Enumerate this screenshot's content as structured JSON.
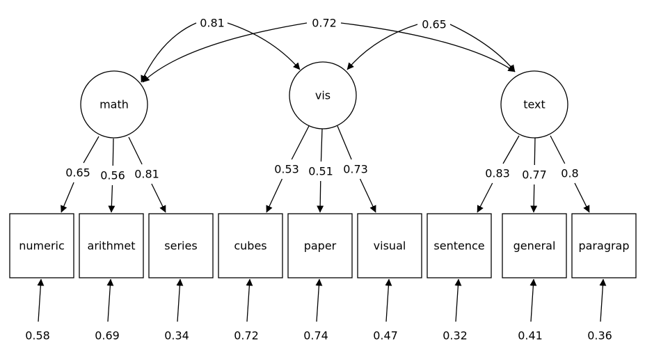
{
  "latent_factors": [
    {
      "id": "math",
      "label": "math"
    },
    {
      "id": "vis",
      "label": "vis"
    },
    {
      "id": "text",
      "label": "text"
    }
  ],
  "factor_correlations": [
    {
      "from": "math",
      "to": "vis",
      "value": "0.81"
    },
    {
      "from": "math",
      "to": "text",
      "value": "0.72"
    },
    {
      "from": "vis",
      "to": "text",
      "value": "0.65"
    }
  ],
  "indicators": [
    {
      "id": "numeric",
      "label": "numeric",
      "factor": "math",
      "loading": "0.65",
      "residual": "0.58"
    },
    {
      "id": "arithmet",
      "label": "arithmet",
      "factor": "math",
      "loading": "0.56",
      "residual": "0.69"
    },
    {
      "id": "series",
      "label": "series",
      "factor": "math",
      "loading": "0.81",
      "residual": "0.34"
    },
    {
      "id": "cubes",
      "label": "cubes",
      "factor": "vis",
      "loading": "0.53",
      "residual": "0.72"
    },
    {
      "id": "paper",
      "label": "paper",
      "factor": "vis",
      "loading": "0.51",
      "residual": "0.74"
    },
    {
      "id": "visual",
      "label": "visual",
      "factor": "vis",
      "loading": "0.73",
      "residual": "0.47"
    },
    {
      "id": "sentence",
      "label": "sentence",
      "factor": "text",
      "loading": "0.83",
      "residual": "0.32"
    },
    {
      "id": "general",
      "label": "general",
      "factor": "text",
      "loading": "0.77",
      "residual": "0.41"
    },
    {
      "id": "paragrap",
      "label": "paragrap",
      "factor": "text",
      "loading": "0.8",
      "residual": "0.36"
    }
  ]
}
